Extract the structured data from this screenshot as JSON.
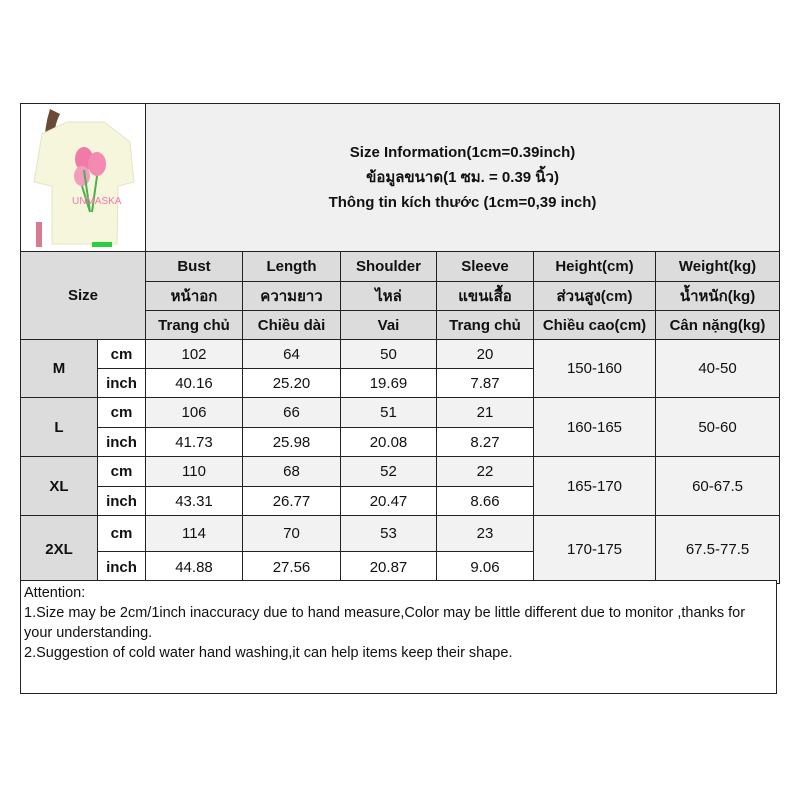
{
  "title": {
    "line_en": "Size Information(1cm=0.39inch)",
    "line_th": "ข้อมูลขนาด(1 ซม. = 0.39 นิ้ว)",
    "line_vi": "Thông tin kích thước (1cm=0,39 inch)"
  },
  "size_label": "Size",
  "columns": [
    {
      "en": "Bust",
      "th": "หน้าอก",
      "vi": "Trang chủ"
    },
    {
      "en": "Length",
      "th": "ความยาว",
      "vi": "Chiều dài"
    },
    {
      "en": "Shoulder",
      "th": "ไหล่",
      "vi": "Vai"
    },
    {
      "en": "Sleeve",
      "th": "แขนเสื้อ",
      "vi": "Trang chủ"
    },
    {
      "en": "Height(cm)",
      "th": "ส่วนสูง(cm)",
      "vi": "Chiều cao(cm)"
    },
    {
      "en": "Weight(kg)",
      "th": "น้ำหนัก(kg)",
      "vi": "Cân nặng(kg)"
    }
  ],
  "units": {
    "cm": "cm",
    "inch": "inch"
  },
  "sizes": [
    {
      "size": "M",
      "cm": [
        "102",
        "64",
        "50",
        "20"
      ],
      "inch": [
        "40.16",
        "25.20",
        "19.69",
        "7.87"
      ],
      "height": "150-160",
      "weight": "40-50"
    },
    {
      "size": "L",
      "cm": [
        "106",
        "66",
        "51",
        "21"
      ],
      "inch": [
        "41.73",
        "25.98",
        "20.08",
        "8.27"
      ],
      "height": "160-165",
      "weight": "50-60"
    },
    {
      "size": "XL",
      "cm": [
        "110",
        "68",
        "52",
        "22"
      ],
      "inch": [
        "43.31",
        "26.77",
        "20.47",
        "8.66"
      ],
      "height": "165-170",
      "weight": "60-67.5"
    },
    {
      "size": "2XL",
      "cm": [
        "114",
        "70",
        "53",
        "23"
      ],
      "inch": [
        "44.88",
        "27.56",
        "20.87",
        "9.06"
      ],
      "height": "170-175",
      "weight": "67.5-77.5"
    }
  ],
  "attention": {
    "heading": "Attention:",
    "notes": [
      "1.Size may be 2cm/1inch inaccuracy due to hand measure,Color may be little different due to monitor ,thanks for your understanding.",
      "2.Suggestion of cold water hand washing,it can help items keep their shape."
    ]
  },
  "colors": {
    "header_bg": "#dcdcdc",
    "title_bg": "#f0f0f0",
    "cm_row_bg": "#f2f2f2",
    "border": "#222222",
    "shirt": "#f6f6dc",
    "tulip": "#f07aa8"
  }
}
